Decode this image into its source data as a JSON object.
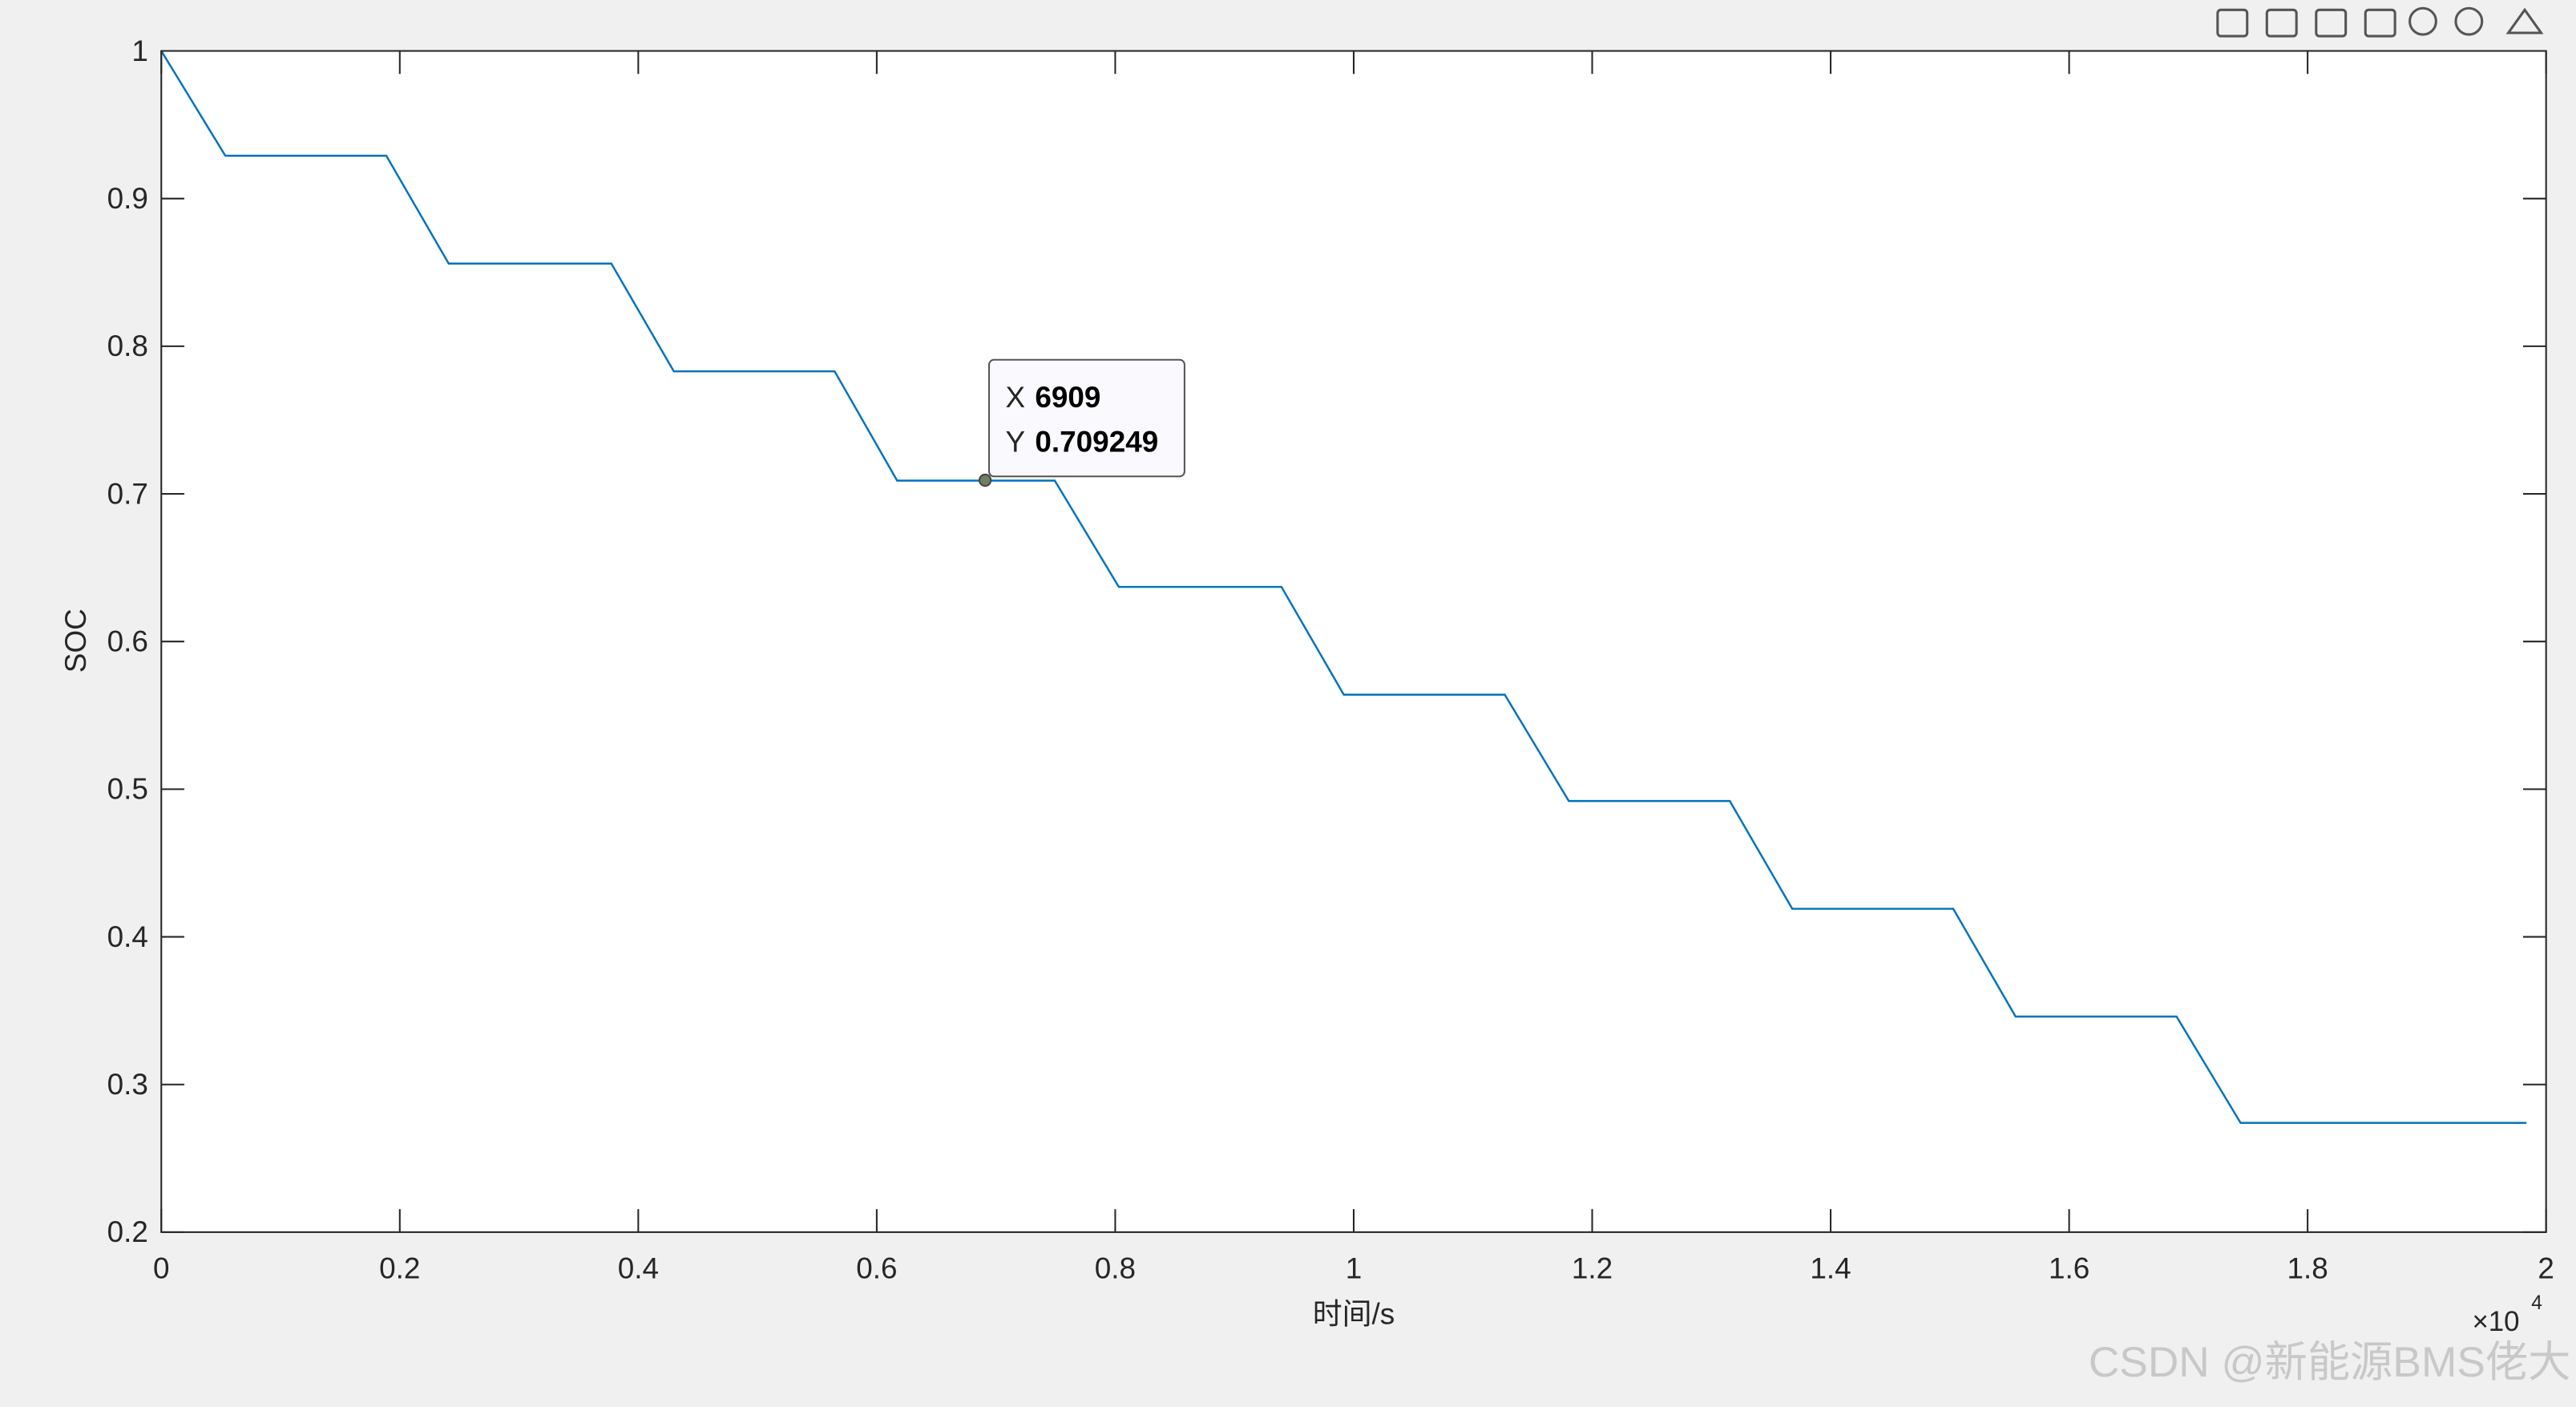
{
  "chart_data": {
    "type": "line",
    "xlabel": "时间/s",
    "ylabel": "SOC",
    "x_exponent_label": "×10",
    "x_exponent": 4,
    "x": [
      0,
      537,
      1887,
      2410,
      3774,
      4298,
      5647,
      6171,
      7493,
      8030,
      9394,
      9917,
      11267,
      11804,
      13154,
      13678,
      15028,
      15551,
      16901,
      17438,
      19835
    ],
    "values": [
      1,
      0.929,
      0.929,
      0.856,
      0.856,
      0.783,
      0.783,
      0.709,
      0.709,
      0.637,
      0.637,
      0.564,
      0.564,
      0.492,
      0.492,
      0.419,
      0.419,
      0.346,
      0.346,
      0.274,
      0.274
    ],
    "color": "#0072bd",
    "xlim": [
      0,
      20000
    ],
    "xticks": [
      {
        "value": 0,
        "label": "0"
      },
      {
        "value": 2000,
        "label": "0.2"
      },
      {
        "value": 4000,
        "label": "0.4"
      },
      {
        "value": 6000,
        "label": "0.6"
      },
      {
        "value": 8000,
        "label": "0.8"
      },
      {
        "value": 10000,
        "label": "1"
      },
      {
        "value": 12000,
        "label": "1.2"
      },
      {
        "value": 14000,
        "label": "1.4"
      },
      {
        "value": 16000,
        "label": "1.6"
      },
      {
        "value": 18000,
        "label": "1.8"
      },
      {
        "value": 20000,
        "label": "2"
      }
    ],
    "ylim": [
      0.2,
      1
    ],
    "yticks": [
      0.2,
      0.3,
      0.4,
      0.5,
      0.6,
      0.7,
      0.8,
      0.9,
      1
    ],
    "grid": false,
    "datatip": {
      "x_label": "X",
      "x": 6909,
      "y_label": "Y",
      "y": 0.709249
    }
  },
  "watermark": "CSDN @新能源BMS佬大"
}
